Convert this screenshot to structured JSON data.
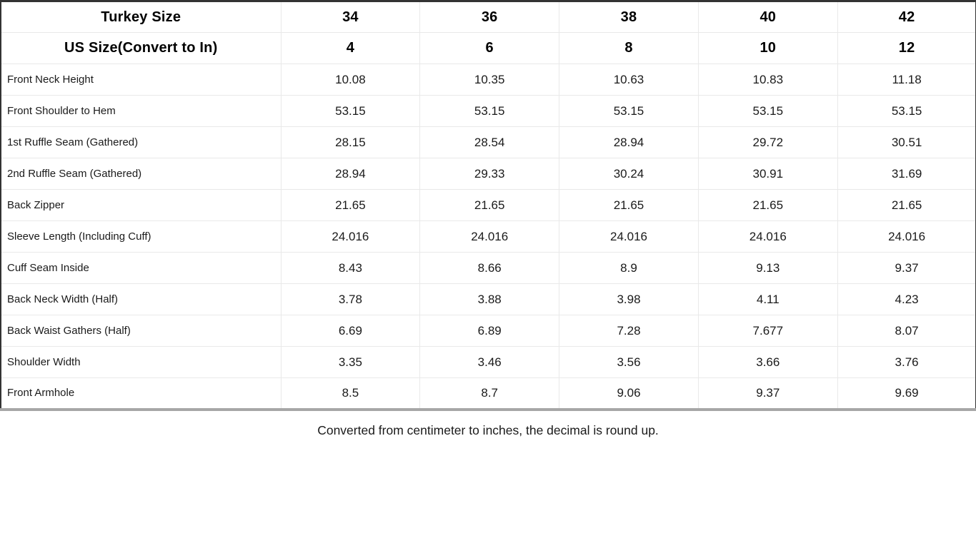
{
  "table": {
    "header_rows": [
      {
        "label": "Turkey Size",
        "values": [
          "34",
          "36",
          "38",
          "40",
          "42"
        ]
      },
      {
        "label": "US Size(Convert to In)",
        "values": [
          "4",
          "6",
          "8",
          "10",
          "12"
        ]
      }
    ],
    "rows": [
      {
        "label": "Front Neck Height",
        "values": [
          "10.08",
          "10.35",
          "10.63",
          "10.83",
          "11.18"
        ]
      },
      {
        "label": "Front Shoulder to Hem",
        "values": [
          "53.15",
          "53.15",
          "53.15",
          "53.15",
          "53.15"
        ]
      },
      {
        "label": "1st Ruffle Seam (Gathered)",
        "values": [
          "28.15",
          "28.54",
          "28.94",
          "29.72",
          "30.51"
        ]
      },
      {
        "label": "2nd Ruffle Seam (Gathered)",
        "values": [
          "28.94",
          "29.33",
          "30.24",
          "30.91",
          "31.69"
        ]
      },
      {
        "label": "Back Zipper",
        "values": [
          "21.65",
          "21.65",
          "21.65",
          "21.65",
          "21.65"
        ]
      },
      {
        "label": "Sleeve Length (Including Cuff)",
        "values": [
          "24.016",
          "24.016",
          "24.016",
          "24.016",
          "24.016"
        ]
      },
      {
        "label": "Cuff Seam Inside",
        "values": [
          "8.43",
          "8.66",
          "8.9",
          "9.13",
          "9.37"
        ]
      },
      {
        "label": "Back Neck Width (Half)",
        "values": [
          "3.78",
          "3.88",
          "3.98",
          "4.11",
          "4.23"
        ]
      },
      {
        "label": "Back Waist Gathers (Half)",
        "values": [
          "6.69",
          "6.89",
          "7.28",
          "7.677",
          "8.07"
        ]
      },
      {
        "label": "Shoulder Width",
        "values": [
          "3.35",
          "3.46",
          "3.56",
          "3.66",
          "3.76"
        ]
      },
      {
        "label": "Front Armhole",
        "values": [
          "8.5",
          "8.7",
          "9.06",
          "9.37",
          "9.69"
        ]
      }
    ]
  },
  "footer": {
    "note": "Converted from centimeter to inches, the decimal is round up."
  },
  "colors": {
    "frame_border": "#333333",
    "bottom_border": "#a6a6a6",
    "grid_line": "#e9e9e9",
    "text": "#1a1a1a",
    "background": "#ffffff"
  }
}
